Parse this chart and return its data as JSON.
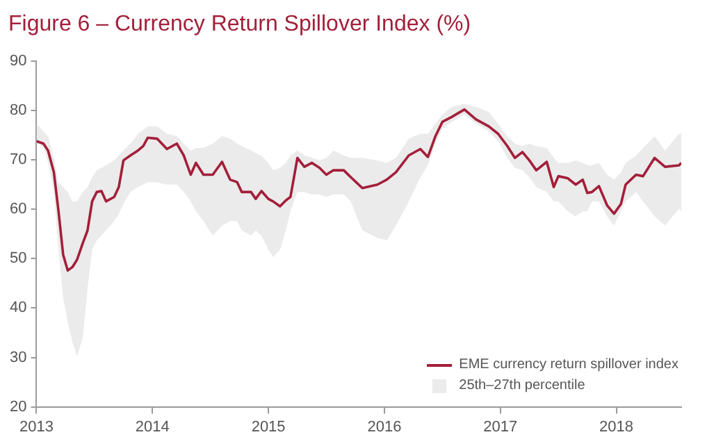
{
  "chart_data": {
    "type": "line",
    "title": "Figure 6 – Currency Return Spillover Index (%)",
    "x": [
      2013.0,
      2013.06,
      2013.1,
      2013.15,
      2013.19,
      2013.23,
      2013.27,
      2013.31,
      2013.35,
      2013.4,
      2013.44,
      2013.48,
      2013.52,
      2013.56,
      2013.6,
      2013.67,
      2013.71,
      2013.75,
      2013.81,
      2013.875,
      2013.92,
      2013.96,
      2014.04,
      2014.125,
      2014.21,
      2014.27,
      2014.33,
      2014.375,
      2014.44,
      2014.52,
      2014.6,
      2014.67,
      2014.73,
      2014.77,
      2014.85,
      2014.89,
      2014.94,
      2015.0,
      2015.04,
      2015.1,
      2015.15,
      2015.19,
      2015.25,
      2015.31,
      2015.375,
      2015.44,
      2015.5,
      2015.56,
      2015.65,
      2015.71,
      2015.81,
      2015.94,
      2016.02,
      2016.1,
      2016.21,
      2016.31,
      2016.375,
      2016.44,
      2016.5,
      2016.58,
      2016.69,
      2016.79,
      2016.9,
      2016.98,
      2017.06,
      2017.125,
      2017.19,
      2017.25,
      2017.31,
      2017.4,
      2017.46,
      2017.5,
      2017.58,
      2017.65,
      2017.71,
      2017.75,
      2017.79,
      2017.85,
      2017.92,
      2017.98,
      2018.04,
      2018.08,
      2018.17,
      2018.23,
      2018.33,
      2018.42,
      2018.54,
      2018.56
    ],
    "series": [
      {
        "name": "EME currency return spillover index",
        "color": "#a31f3a",
        "values": [
          73.8,
          73.3,
          71.9,
          67.5,
          59.6,
          50.8,
          47.6,
          48.3,
          49.8,
          53.2,
          55.7,
          61.6,
          63.5,
          63.7,
          61.6,
          62.5,
          64.5,
          69.9,
          70.9,
          71.9,
          72.8,
          74.5,
          74.3,
          72.2,
          73.3,
          70.9,
          67.0,
          69.4,
          67.0,
          67.0,
          69.6,
          66.0,
          65.5,
          63.5,
          63.5,
          62.1,
          63.7,
          62.1,
          61.6,
          60.6,
          61.8,
          62.5,
          70.4,
          68.6,
          69.4,
          68.4,
          67.0,
          67.9,
          67.9,
          66.5,
          64.3,
          65.0,
          66.0,
          67.5,
          70.9,
          72.2,
          70.6,
          74.8,
          77.7,
          78.7,
          80.2,
          78.2,
          76.8,
          75.3,
          72.8,
          70.4,
          71.6,
          69.9,
          67.9,
          69.6,
          64.5,
          66.7,
          66.3,
          65.0,
          66.0,
          63.3,
          63.5,
          64.7,
          60.8,
          59.1,
          61.1,
          65.0,
          67.0,
          66.7,
          70.4,
          68.6,
          68.9,
          69.4
        ],
        "upper": [
          77.3,
          75.8,
          74.8,
          70.4,
          65.5,
          64.5,
          63.5,
          61.6,
          61.6,
          63.5,
          64.5,
          66.5,
          67.9,
          68.4,
          68.9,
          69.9,
          70.9,
          71.9,
          73.3,
          75.3,
          76.0,
          76.8,
          76.8,
          75.3,
          74.8,
          73.3,
          71.9,
          72.4,
          72.4,
          73.3,
          74.8,
          74.3,
          73.3,
          72.8,
          71.9,
          71.4,
          70.9,
          69.4,
          67.9,
          68.4,
          69.4,
          70.9,
          71.9,
          70.9,
          70.4,
          69.9,
          70.4,
          71.9,
          70.9,
          70.4,
          70.4,
          69.9,
          69.4,
          70.4,
          74.3,
          75.3,
          75.3,
          77.3,
          79.2,
          80.7,
          81.4,
          80.7,
          79.7,
          77.3,
          74.8,
          73.3,
          72.8,
          73.3,
          72.8,
          72.4,
          70.4,
          69.4,
          69.4,
          69.9,
          69.4,
          68.9,
          68.9,
          69.4,
          67.0,
          66.0,
          67.5,
          69.4,
          70.9,
          72.4,
          74.8,
          71.9,
          75.3,
          75.3
        ],
        "lower": [
          73.3,
          72.8,
          69.4,
          63.5,
          51.8,
          42.0,
          37.1,
          33.1,
          30.2,
          34.1,
          43.9,
          51.8,
          53.7,
          54.7,
          55.7,
          57.6,
          59.0,
          61.1,
          63.5,
          64.5,
          65.0,
          65.5,
          65.5,
          65.0,
          65.0,
          63.5,
          61.6,
          59.6,
          57.6,
          54.7,
          56.7,
          57.6,
          57.6,
          55.7,
          54.7,
          55.7,
          54.7,
          51.8,
          50.3,
          51.8,
          55.7,
          59.6,
          63.5,
          63.5,
          63.0,
          63.0,
          62.5,
          63.0,
          63.0,
          61.6,
          55.7,
          54.2,
          53.7,
          56.7,
          61.6,
          66.5,
          68.9,
          73.3,
          76.3,
          77.7,
          79.2,
          77.3,
          75.8,
          73.8,
          70.4,
          68.4,
          67.9,
          66.5,
          64.5,
          63.5,
          61.6,
          61.6,
          59.6,
          58.6,
          59.6,
          59.6,
          61.6,
          61.6,
          58.6,
          56.7,
          59.6,
          61.6,
          63.5,
          61.6,
          58.6,
          56.7,
          60.1,
          59.6
        ]
      }
    ],
    "annotations": [
      "25th–27th percentile"
    ],
    "xlim": [
      2013,
      2018.56
    ],
    "xticks": [
      2013,
      2014,
      2015,
      2016,
      2017,
      2018
    ],
    "ylim": [
      20,
      90
    ],
    "yticks": [
      20,
      30,
      40,
      50,
      60,
      70,
      80,
      90
    ],
    "grid": false,
    "legend": "bottom right",
    "marker": "none",
    "line_style": "solid"
  }
}
